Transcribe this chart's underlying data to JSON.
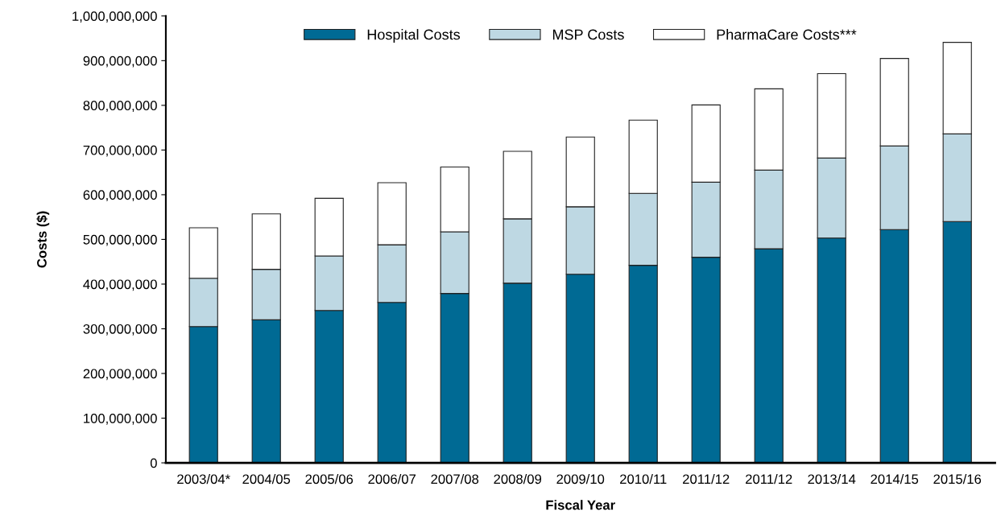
{
  "chart_data": {
    "type": "bar",
    "stacked": true,
    "xlabel": "Fiscal Year",
    "ylabel": "Costs ($)",
    "categories": [
      "2003/04*",
      "2004/05",
      "2005/06",
      "2006/07",
      "2007/08",
      "2008/09",
      "2009/10",
      "2010/11",
      "2011/12",
      "2011/12",
      "2013/14",
      "2014/15",
      "2015/16"
    ],
    "series": [
      {
        "name": "Hospital Costs",
        "color": "#006a94",
        "values": [
          305000000,
          320000000,
          341000000,
          359000000,
          379000000,
          402000000,
          422000000,
          442000000,
          460000000,
          479000000,
          503000000,
          522000000,
          540000000
        ]
      },
      {
        "name": "MSP Costs",
        "color": "#bed8e3",
        "values": [
          108000000,
          113000000,
          122000000,
          129000000,
          138000000,
          144000000,
          151000000,
          161000000,
          168000000,
          176000000,
          179000000,
          187000000,
          196000000
        ]
      },
      {
        "name": "PharmaCare Costs***",
        "color": "#ffffff",
        "values": [
          113000000,
          124000000,
          129000000,
          139000000,
          145000000,
          151000000,
          156000000,
          164000000,
          173000000,
          182000000,
          189000000,
          196000000,
          205000000
        ]
      }
    ],
    "ylim": [
      0,
      1000000000
    ],
    "yticks": [
      0,
      {
        "value": 100000000,
        "label": "100,000,000"
      },
      {
        "value": 200000000,
        "label": "200,000,000"
      },
      {
        "value": 300000000,
        "label": "300,000,000"
      },
      {
        "value": 400000000,
        "label": "400,000,000"
      },
      {
        "value": 500000000,
        "label": "500,000,000"
      },
      {
        "value": 600000000,
        "label": "600,000,000"
      },
      {
        "value": 700000000,
        "label": "700,000,000"
      },
      {
        "value": 800000000,
        "label": "800,000,000"
      },
      {
        "value": 900000000,
        "label": "900,000,000"
      },
      {
        "value": 1000000000,
        "label": "1,000,000,000"
      }
    ],
    "grid": false,
    "legend": "top"
  }
}
